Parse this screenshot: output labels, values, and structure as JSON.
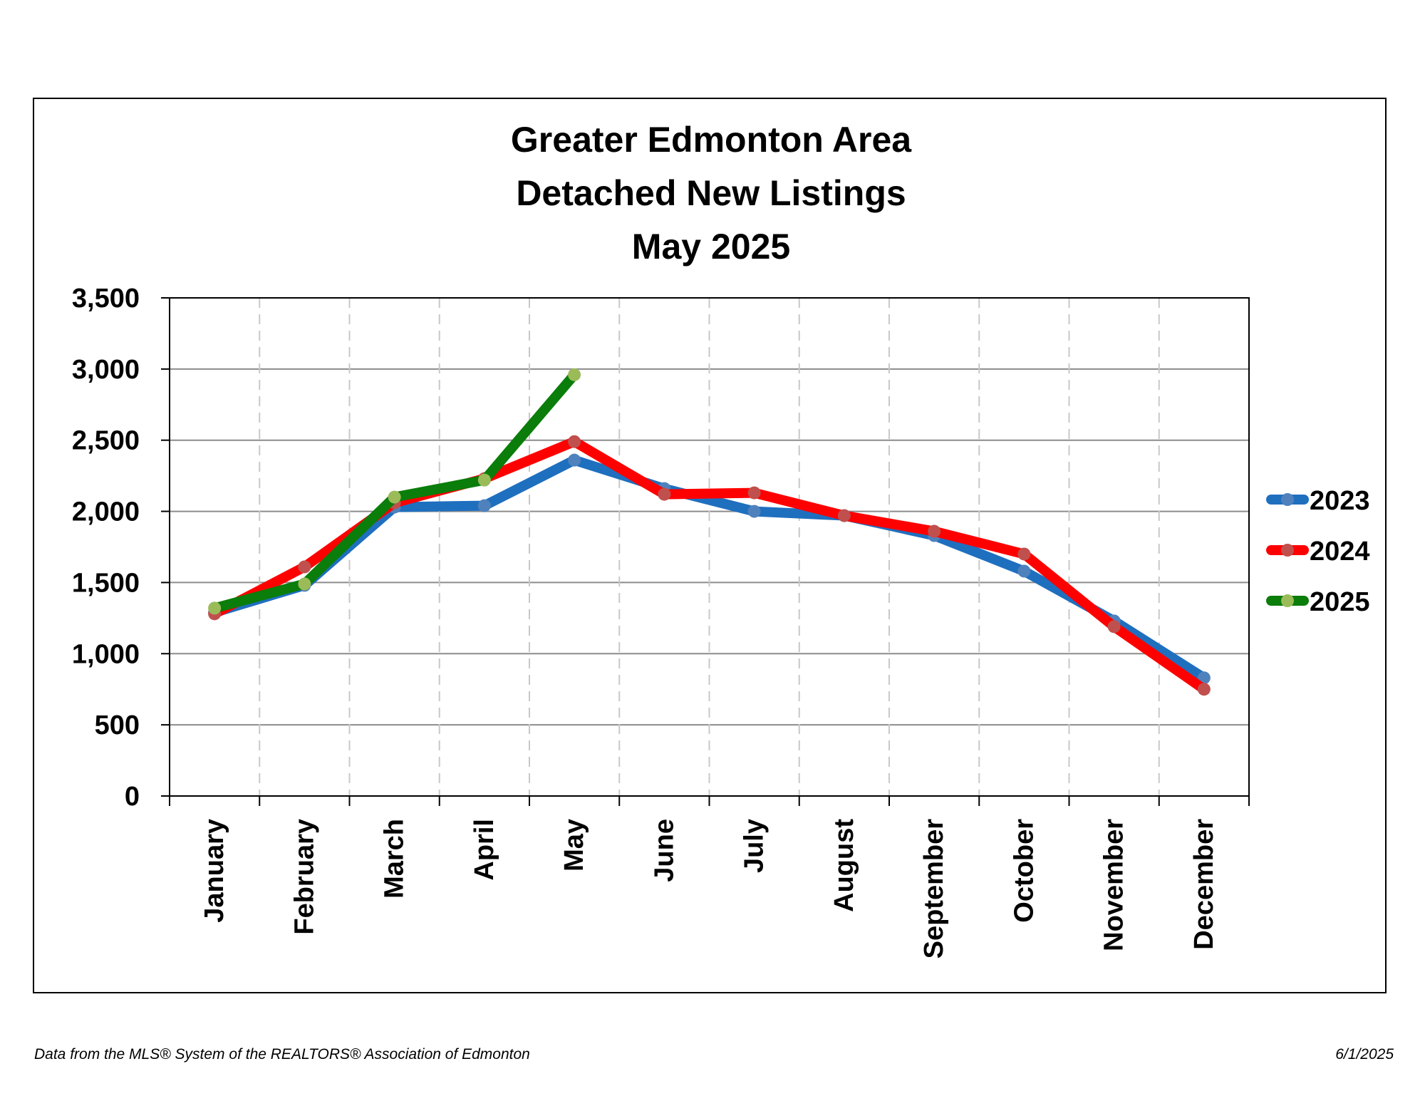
{
  "chart_data": {
    "type": "line",
    "title": [
      "Greater Edmonton Area",
      "Detached New Listings",
      "May 2025"
    ],
    "xlabel": "",
    "ylabel": "",
    "categories": [
      "January",
      "February",
      "March",
      "April",
      "May",
      "June",
      "July",
      "August",
      "September",
      "October",
      "November",
      "December"
    ],
    "ylim": [
      0,
      3500
    ],
    "yticks": [
      0,
      500,
      1000,
      1500,
      2000,
      2500,
      3000,
      3500
    ],
    "ytick_labels": [
      "0",
      "500",
      "1,000",
      "1,500",
      "2,000",
      "2,500",
      "3,000",
      "3,500"
    ],
    "grid": "horizontal solid, vertical dashed",
    "legend_position": "right",
    "series": [
      {
        "name": "2023",
        "color": "#1f6fbf",
        "marker_color": "#4f81bd",
        "values": [
          1290,
          1480,
          2030,
          2040,
          2360,
          2160,
          2000,
          1970,
          1830,
          1580,
          1230,
          830
        ]
      },
      {
        "name": "2024",
        "color": "#ff0000",
        "marker_color": "#c0504d",
        "values": [
          1280,
          1610,
          2060,
          2230,
          2490,
          2120,
          2130,
          1970,
          1860,
          1700,
          1190,
          750
        ]
      },
      {
        "name": "2025",
        "color": "#0a7d0a",
        "marker_color": "#9bbb59",
        "values": [
          1320,
          1490,
          2100,
          2220,
          2960,
          null,
          null,
          null,
          null,
          null,
          null,
          null
        ]
      }
    ]
  },
  "footer": {
    "source": "Data from the MLS® System of the REALTORS® Association of Edmonton",
    "date": "6/1/2025"
  }
}
